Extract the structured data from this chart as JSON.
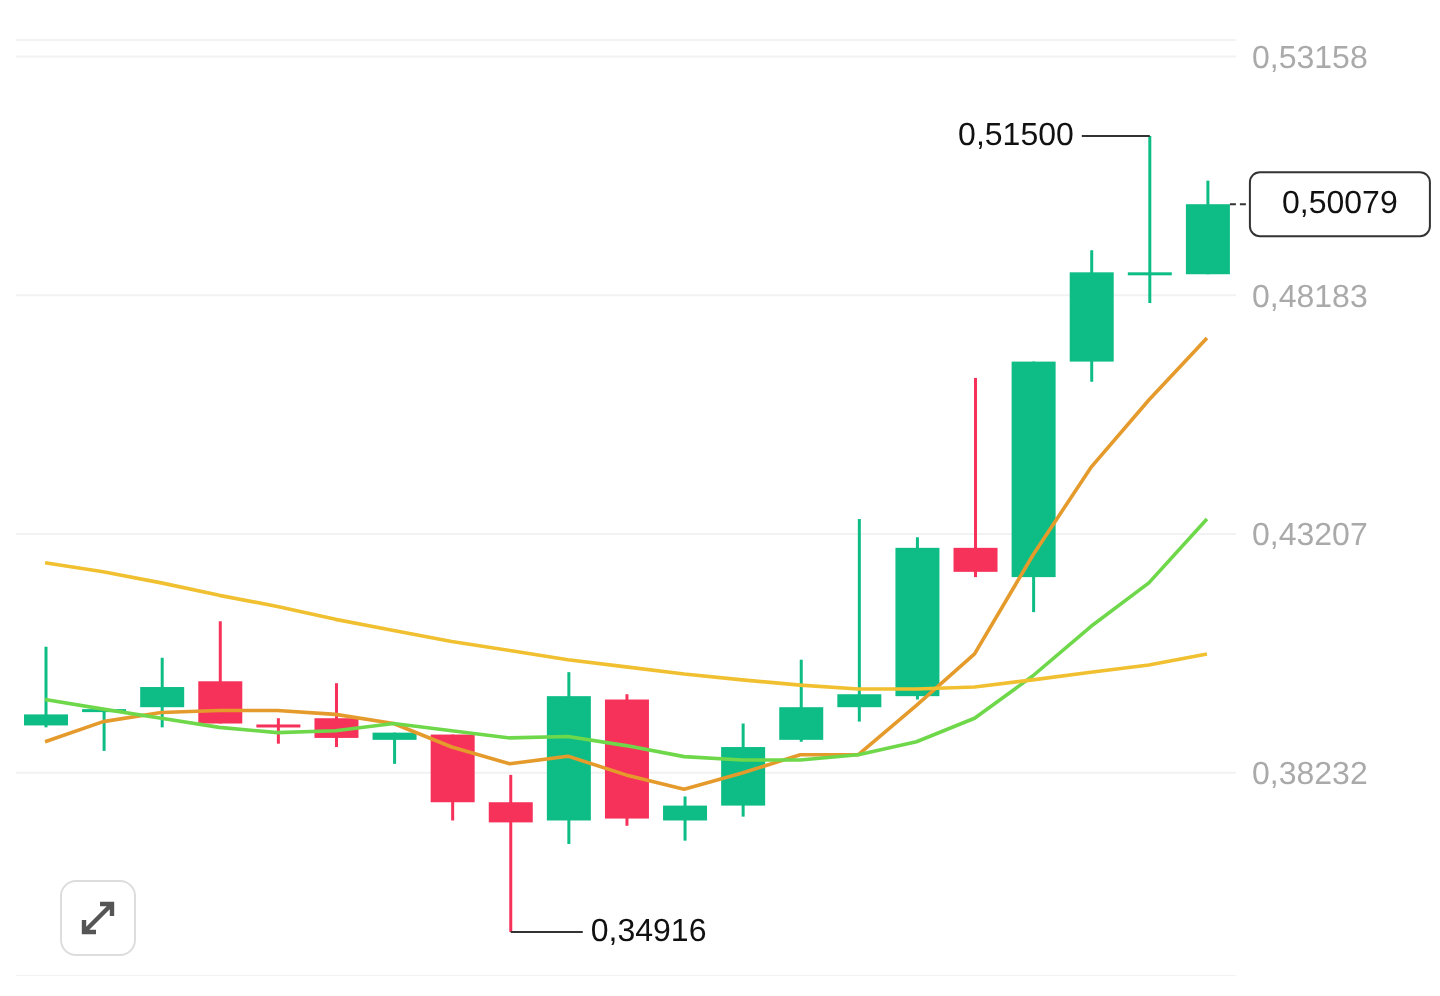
{
  "chart_data": {
    "type": "candlestick",
    "categories": [
      null,
      null,
      null,
      null,
      null,
      null,
      null,
      null,
      null,
      null,
      null,
      null,
      null,
      null,
      null,
      null,
      null,
      null,
      null,
      null,
      null
    ],
    "ohlc": [
      [
        0.3922,
        0.4086,
        0.3918,
        0.3945
      ],
      [
        0.3955,
        0.3956,
        0.3869,
        0.3956
      ],
      [
        0.396,
        0.4063,
        0.3918,
        0.4002
      ],
      [
        0.4014,
        0.4139,
        0.3926,
        0.3926
      ],
      [
        0.3924,
        0.3937,
        0.3884,
        0.3922
      ],
      [
        0.3937,
        0.401,
        0.3877,
        0.3896
      ],
      [
        0.3892,
        0.3907,
        0.3842,
        0.3907
      ],
      [
        0.3903,
        0.3903,
        0.3724,
        0.3762
      ],
      [
        0.3762,
        0.3819,
        0.34916,
        0.372
      ],
      [
        0.3724,
        0.4033,
        0.3675,
        0.3983
      ],
      [
        0.3976,
        0.3987,
        0.3713,
        0.3728
      ],
      [
        0.3724,
        0.3774,
        0.3682,
        0.3755
      ],
      [
        0.3755,
        0.3926,
        0.3732,
        0.3877
      ],
      [
        0.3892,
        0.4059,
        0.3888,
        0.396
      ],
      [
        0.396,
        0.4352,
        0.393,
        0.3987
      ],
      [
        0.3983,
        0.4314,
        0.3976,
        0.4292
      ],
      [
        0.4292,
        0.4646,
        0.4231,
        0.4242
      ],
      [
        0.4231,
        0.468,
        0.4158,
        0.468
      ],
      [
        0.468,
        0.4912,
        0.4638,
        0.4866
      ],
      [
        0.4866,
        0.515,
        0.4802,
        0.4866
      ],
      [
        0.4862,
        0.5057,
        0.4862,
        0.50079
      ]
    ],
    "colors": [
      "#0dbd85",
      "#0dbd85",
      "#0dbd85",
      "#f6325a",
      "#f6325a",
      "#f6325a",
      "#0dbd85",
      "#f6325a",
      "#f6325a",
      "#0dbd85",
      "#f6325a",
      "#0dbd85",
      "#0dbd85",
      "#0dbd85",
      "#0dbd85",
      "#0dbd85",
      "#f6325a",
      "#0dbd85",
      "#0dbd85",
      "#0dbd85",
      "#0dbd85"
    ],
    "series": [
      {
        "type": "line",
        "color": "#e59a2c",
        "values": [
          0.3888,
          0.393,
          0.3949,
          0.3953,
          0.3953,
          0.3945,
          0.3926,
          0.3877,
          0.3842,
          0.3858,
          0.3819,
          0.3789,
          0.3823,
          0.3861,
          0.3861,
          0.3964,
          0.4071,
          0.4276,
          0.4459,
          0.46,
          0.4729
        ]
      },
      {
        "type": "line",
        "color": "#6ed84a",
        "values": [
          0.3976,
          0.3956,
          0.3937,
          0.3918,
          0.3907,
          0.3911,
          0.3926,
          0.3911,
          0.3896,
          0.3899,
          0.388,
          0.3857,
          0.385,
          0.385,
          0.3861,
          0.3888,
          0.3937,
          0.4025,
          0.4128,
          0.4219,
          0.4352
        ]
      },
      {
        "type": "line",
        "color": "#f0c030",
        "values": [
          0.4261,
          0.4242,
          0.4219,
          0.4193,
          0.417,
          0.4143,
          0.412,
          0.4097,
          0.4078,
          0.4059,
          0.4044,
          0.4029,
          0.4017,
          0.4006,
          0.3998,
          0.3998,
          0.4002,
          0.4017,
          0.4033,
          0.4048,
          0.4071
        ]
      }
    ],
    "ylim": [
      0.34,
      0.535
    ],
    "yticks": [
      {
        "value": 0.38232,
        "label": "0,38232"
      },
      {
        "value": 0.43207,
        "label": "0,43207"
      },
      {
        "value": 0.48183,
        "label": "0,48183"
      },
      {
        "value": 0.53158,
        "label": "0,53158"
      }
    ],
    "tick_labels": "y",
    "grid": "y",
    "marker": "none",
    "annotations": [
      "0,51500",
      "0,34916",
      "0,50079"
    ]
  }
}
